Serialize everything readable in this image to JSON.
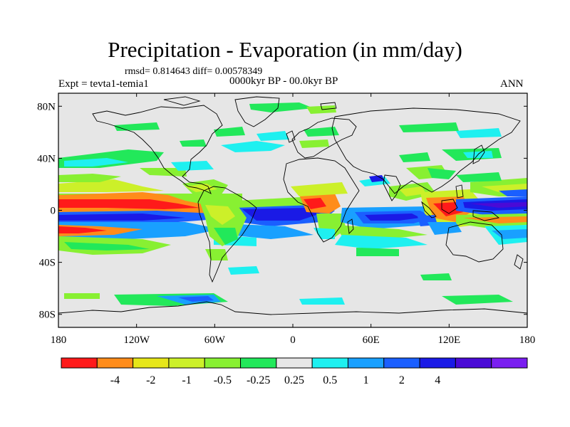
{
  "title": "Precipitation - Evaporation (in mm/day)",
  "stats_line": "rmsd= 0.814643 diff= 0.00578349",
  "experiment_label": "Expt = tevta1-temia1",
  "period_label": "0000kyr BP - 00.0kyr BP",
  "season_label": "ANN",
  "lat_ticks": [
    {
      "label": "80N",
      "lat": 80
    },
    {
      "label": "40N",
      "lat": 40
    },
    {
      "label": "0",
      "lat": 0
    },
    {
      "label": "40S",
      "lat": -40
    },
    {
      "label": "80S",
      "lat": -80
    }
  ],
  "lon_ticks": [
    {
      "label": "180",
      "lon": -180
    },
    {
      "label": "120W",
      "lon": -120
    },
    {
      "label": "60W",
      "lon": -60
    },
    {
      "label": "0",
      "lon": 0
    },
    {
      "label": "60E",
      "lon": 60
    },
    {
      "label": "120E",
      "lon": 120
    },
    {
      "label": "180",
      "lon": 180
    }
  ],
  "colorbar": {
    "colors": [
      "#ff1a1a",
      "#ff8c1a",
      "#e6e619",
      "#ccf029",
      "#88f032",
      "#22e85a",
      "#e6e6e6",
      "#1ef0f0",
      "#19a0ff",
      "#1a5fff",
      "#1a1ae6",
      "#4a0ad6",
      "#7a1ef0"
    ],
    "labels": [
      "-4",
      "-2",
      "-1",
      "-0.5",
      "-0.25",
      "0.25",
      "0.5",
      "1",
      "2",
      "4"
    ]
  },
  "colors": {
    "ocean_background": "#e6e6e6",
    "coastline": "#000000"
  }
}
